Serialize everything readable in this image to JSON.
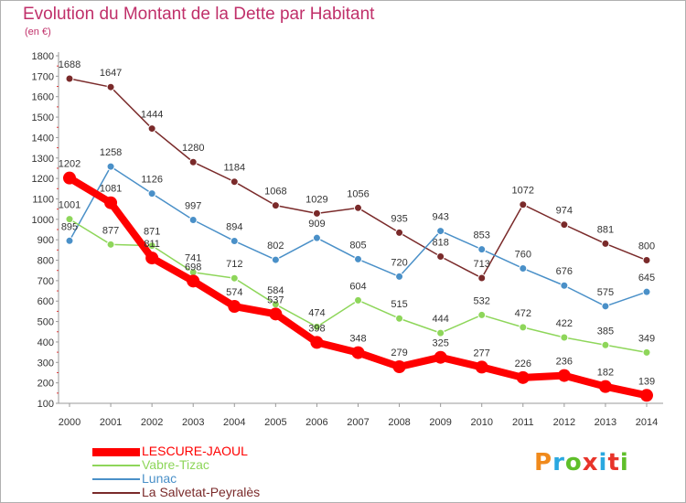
{
  "title": "Evolution du Montant de la Dette par Habitant",
  "subtitle": "(en €)",
  "logo": {
    "letters": [
      "P",
      "r",
      "o",
      "x",
      "i",
      "t",
      "i"
    ],
    "colors": [
      "#f08a1c",
      "#2aa8e0",
      "#5fbf2a",
      "#e8342a",
      "#2aa8e0",
      "#e8342a",
      "#5fbf2a"
    ]
  },
  "chart_data": {
    "type": "line",
    "title": "Evolution du Montant de la Dette par Habitant",
    "subtitle": "(en €)",
    "x": [
      "2000",
      "2001",
      "2002",
      "2003",
      "2004",
      "2005",
      "2006",
      "2007",
      "2008",
      "2009",
      "2010",
      "2011",
      "2012",
      "2013",
      "2014"
    ],
    "ylim": [
      100,
      1800
    ],
    "yticks": [
      100,
      200,
      300,
      400,
      500,
      600,
      700,
      800,
      900,
      1000,
      1100,
      1200,
      1300,
      1400,
      1500,
      1600,
      1700,
      1800
    ],
    "grid": false,
    "legend_position": "bottom-left",
    "series": [
      {
        "name": "La Salvetat-Peyralès",
        "color": "#7a2a2a",
        "values": [
          1688,
          1647,
          1444,
          1280,
          1184,
          1068,
          1029,
          1056,
          935,
          818,
          713,
          1072,
          974,
          881,
          800
        ]
      },
      {
        "name": "Lunac",
        "color": "#4a90c8",
        "values": [
          895,
          1258,
          1126,
          997,
          894,
          802,
          909,
          805,
          720,
          943,
          853,
          760,
          676,
          575,
          645
        ]
      },
      {
        "name": "Vabre-Tizac",
        "color": "#8ed65a",
        "values": [
          1001,
          877,
          871,
          741,
          712,
          584,
          474,
          604,
          515,
          444,
          532,
          472,
          422,
          385,
          349
        ]
      },
      {
        "name": "LESCURE-JAOUL",
        "color": "#ff0000",
        "values": [
          1202,
          1081,
          811,
          698,
          574,
          537,
          398,
          348,
          279,
          325,
          277,
          226,
          236,
          182,
          139
        ]
      }
    ]
  }
}
